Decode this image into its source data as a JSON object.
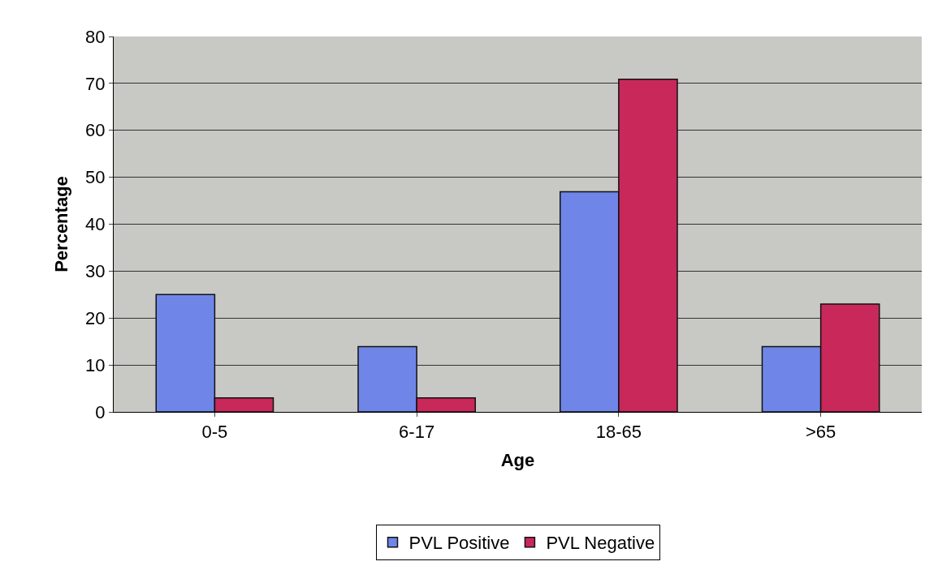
{
  "chart_data": {
    "type": "bar",
    "xlabel": "Age",
    "ylabel": "Percentage",
    "categories": [
      "0-5",
      "6-17",
      "18-65",
      ">65"
    ],
    "series": [
      {
        "name": "PVL Positive",
        "color": "#6f86e8",
        "values": [
          25,
          13.9,
          46.9,
          13.9
        ]
      },
      {
        "name": "PVL Negative",
        "color": "#c8285a",
        "values": [
          3,
          3,
          70.9,
          23
        ]
      }
    ],
    "ylim": [
      0,
      80
    ],
    "yticks": [
      0,
      10,
      20,
      30,
      40,
      50,
      60,
      70,
      80
    ],
    "grid": "y",
    "legend": "bottom"
  }
}
